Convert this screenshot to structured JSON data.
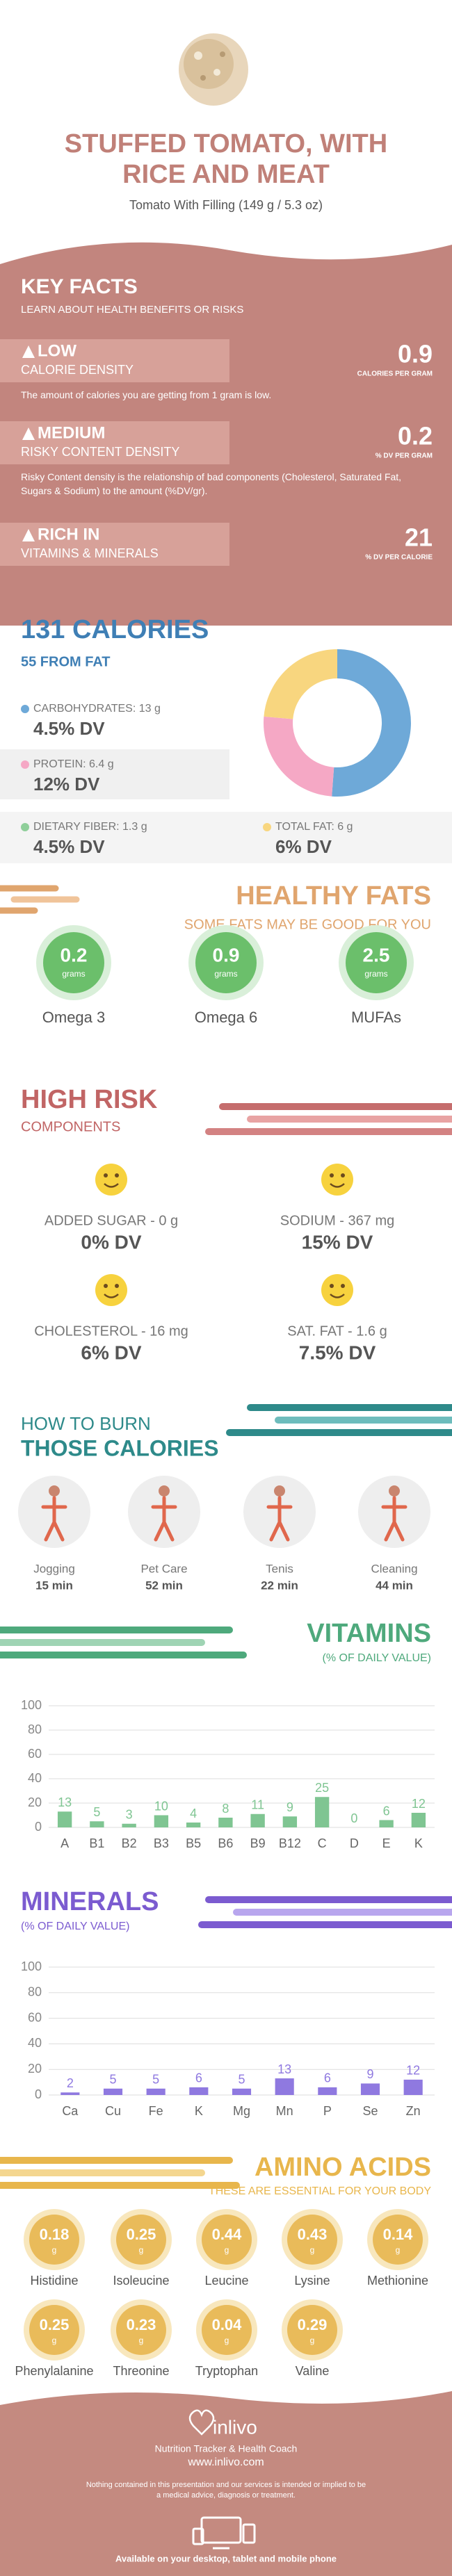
{
  "header": {
    "title": "STUFFED TOMATO, WITH RICE AND MEAT",
    "subtitle": "Tomato With Filling (149 g / 5.3 oz)"
  },
  "key_facts": {
    "title": "KEY FACTS",
    "subtitle": "LEARN ABOUT HEALTH BENEFITS OR RISKS",
    "items": [
      {
        "level": "LOW",
        "name": "CALORIE DENSITY",
        "value": 0.9,
        "unit": "CALORIES PER GRAM",
        "description": "The amount of calories you are getting from 1 gram is low."
      },
      {
        "level": "MEDIUM",
        "name": "RISKY CONTENT DENSITY",
        "value": 0.2,
        "unit": "% DV PER GRAM",
        "description": "Risky Content density is the relationship of bad components (Cholesterol, Saturated Fat, Sugars & Sodium) to the amount (%DV/gr)."
      },
      {
        "level": "RICH IN",
        "name": "VITAMINS & MINERALS",
        "value": 21,
        "unit": "% DV PER CALORIE"
      }
    ]
  },
  "calories": {
    "title": "131 CALORIES",
    "subtitle": "55 FROM FAT",
    "nutrients": [
      {
        "label": "CARBOHYDRATES: 13 g",
        "dv": "4.5% DV",
        "grams": 13,
        "color": "#6ea9d8"
      },
      {
        "label": "PROTEIN: 6.4 g",
        "dv": "12% DV",
        "grams": 6.4,
        "color": "#f5a8c5"
      },
      {
        "label": "DIETARY FIBER: 1.3 g",
        "dv": "4.5% DV"
      },
      {
        "label": "TOTAL FAT: 6 g",
        "dv": "6% DV",
        "grams": 6,
        "color": "#f8d67f"
      }
    ]
  },
  "healthy_fats": {
    "title": "HEALTHY FATS",
    "subtitle": "SOME FATS MAY BE GOOD FOR YOU",
    "items": [
      {
        "value": 0.2,
        "unit": "grams",
        "name": "Omega 3"
      },
      {
        "value": 0.9,
        "unit": "grams",
        "name": "Omega 6"
      },
      {
        "value": 2.5,
        "unit": "grams",
        "name": "MUFAs"
      }
    ]
  },
  "high_risk": {
    "title": "HIGH RISK",
    "subtitle": "COMPONENTS",
    "items": [
      {
        "label": "ADDED SUGAR - 0 g",
        "dv": "0% DV"
      },
      {
        "label": "SODIUM - 367 mg",
        "dv": "15% DV"
      },
      {
        "label": "CHOLESTEROL - 16 mg",
        "dv": "6% DV"
      },
      {
        "label": "SAT. FAT - 1.6 g",
        "dv": "7.5% DV"
      }
    ]
  },
  "burn": {
    "title": "HOW TO BURN",
    "subtitle": "THOSE CALORIES",
    "activities": [
      {
        "name": "Jogging",
        "time": "15 min"
      },
      {
        "name": "Pet Care",
        "time": "52 min"
      },
      {
        "name": "Tenis",
        "time": "22 min"
      },
      {
        "name": "Cleaning",
        "time": "44 min"
      }
    ]
  },
  "chart_data": [
    {
      "type": "bar",
      "title": "VITAMINS",
      "subtitle": "(% OF DAILY VALUE)",
      "categories": [
        "A",
        "B1",
        "B2",
        "B3",
        "B5",
        "B6",
        "B9",
        "B12",
        "C",
        "D",
        "E",
        "K"
      ],
      "values": [
        13,
        5,
        3,
        10,
        4,
        8,
        11,
        9,
        25,
        0,
        6,
        12
      ],
      "color": "#7fc592",
      "ylim": [
        0,
        100
      ],
      "yticks": [
        0,
        20,
        40,
        60,
        80,
        100
      ],
      "grid": true
    },
    {
      "type": "bar",
      "title": "MINERALS",
      "subtitle": "(% OF DAILY VALUE)",
      "categories": [
        "Ca",
        "Cu",
        "Fe",
        "K",
        "Mg",
        "Mn",
        "P",
        "Se",
        "Zn"
      ],
      "values": [
        2,
        5,
        5,
        6,
        5,
        13,
        6,
        9,
        12
      ],
      "color": "#8f79e0",
      "ylim": [
        0,
        100
      ],
      "yticks": [
        0,
        20,
        40,
        60,
        80,
        100
      ],
      "grid": true
    }
  ],
  "amino_acids": {
    "title": "AMINO ACIDS",
    "subtitle": "THESE ARE ESSENTIAL FOR YOUR BODY",
    "items": [
      {
        "value": 0.18,
        "unit": "g",
        "name": "Histidine"
      },
      {
        "value": 0.25,
        "unit": "g",
        "name": "Isoleucine"
      },
      {
        "value": 0.44,
        "unit": "g",
        "name": "Leucine"
      },
      {
        "value": 0.43,
        "unit": "g",
        "name": "Lysine"
      },
      {
        "value": 0.14,
        "unit": "g",
        "name": "Methionine"
      },
      {
        "value": 0.25,
        "unit": "g",
        "name": "Phenylalanine"
      },
      {
        "value": 0.23,
        "unit": "g",
        "name": "Threonine"
      },
      {
        "value": 0.04,
        "unit": "g",
        "name": "Tryptophan"
      },
      {
        "value": 0.29,
        "unit": "g",
        "name": "Valine"
      }
    ]
  },
  "footer": {
    "brand": "inlivo",
    "tagline": "Nutrition Tracker & Health Coach",
    "url": "www.inlivo.com",
    "disclaimer": "Nothing contained in this presentation and our services is intended or implied to be a medical advice, diagnosis or treatment.",
    "availability": "Available on your desktop, tablet and mobile phone"
  }
}
